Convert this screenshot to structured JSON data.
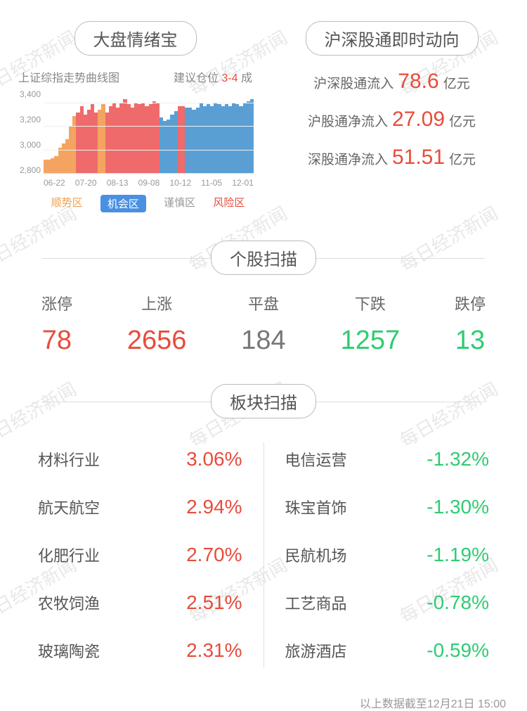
{
  "watermark_text": "每日经济新闻",
  "sentiment": {
    "title": "大盘情绪宝",
    "chart_title": "上证综指走势曲线图",
    "position_label_pre": "建议仓位",
    "position_value": "3-4",
    "position_label_post": "成",
    "chart": {
      "type": "area",
      "ylim": [
        2800,
        3500
      ],
      "yticks": [
        "3,400",
        "3,200",
        "3,000",
        "2,800"
      ],
      "xticks": [
        "06-22",
        "07-20",
        "08-13",
        "09-08",
        "10-12",
        "11-05",
        "12-01"
      ],
      "segments": [
        {
          "color": "#f4a460",
          "heights": [
            16,
            16,
            18,
            20,
            30,
            35,
            40,
            56,
            68
          ]
        },
        {
          "color": "#ef6b6b",
          "heights": [
            72,
            80,
            70,
            76,
            82,
            72
          ]
        },
        {
          "color": "#f4a460",
          "heights": [
            76,
            82
          ]
        },
        {
          "color": "#ef6b6b",
          "heights": [
            72,
            80,
            84,
            78,
            84,
            88,
            82,
            78,
            84,
            82,
            84,
            80,
            82,
            86,
            84
          ]
        },
        {
          "color": "#5a9fd4",
          "heights": [
            66,
            62,
            64,
            70,
            74
          ]
        },
        {
          "color": "#ef6b6b",
          "heights": [
            80,
            80
          ]
        },
        {
          "color": "#5a9fd4",
          "heights": [
            78,
            78,
            76,
            78,
            84,
            80,
            82,
            80,
            84,
            82,
            80,
            82,
            80,
            84,
            82,
            80,
            84,
            86,
            88
          ]
        }
      ]
    },
    "legend": {
      "trend": "顺势区",
      "chance": "机会区",
      "caution": "谨慎区",
      "risk": "风险区"
    }
  },
  "northbound": {
    "title": "沪深股通即时动向",
    "rows": [
      {
        "label": "沪深股通流入",
        "value": "78.6",
        "unit": "亿元"
      },
      {
        "label": "沪股通净流入",
        "value": "27.09",
        "unit": "亿元"
      },
      {
        "label": "深股通净流入",
        "value": "51.51",
        "unit": "亿元"
      }
    ]
  },
  "stock_scan": {
    "title": "个股扫描",
    "items": [
      {
        "label": "涨停",
        "value": "78",
        "color": "v-red"
      },
      {
        "label": "上涨",
        "value": "2656",
        "color": "v-red"
      },
      {
        "label": "平盘",
        "value": "184",
        "color": "v-gray"
      },
      {
        "label": "下跌",
        "value": "1257",
        "color": "v-green"
      },
      {
        "label": "跌停",
        "value": "13",
        "color": "v-green"
      }
    ]
  },
  "sector_scan": {
    "title": "板块扫描",
    "gainers": [
      {
        "name": "材料行业",
        "value": "3.06%"
      },
      {
        "name": "航天航空",
        "value": "2.94%"
      },
      {
        "name": "化肥行业",
        "value": "2.70%"
      },
      {
        "name": "农牧饲渔",
        "value": "2.51%"
      },
      {
        "name": "玻璃陶瓷",
        "value": "2.31%"
      }
    ],
    "losers": [
      {
        "name": "电信运营",
        "value": "-1.32%"
      },
      {
        "name": "珠宝首饰",
        "value": "-1.30%"
      },
      {
        "name": "民航机场",
        "value": "-1.19%"
      },
      {
        "name": "工艺商品",
        "value": "-0.78%"
      },
      {
        "name": "旅游酒店",
        "value": "-0.59%"
      }
    ]
  },
  "footer": "以上数据截至12月21日 15:00"
}
